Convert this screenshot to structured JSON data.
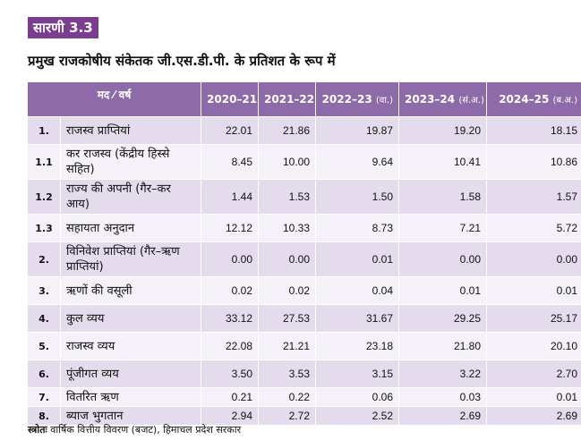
{
  "badge": "सारणी 3.3",
  "title": "प्रमुख राजकोषीय संकेतक जी.एस.डी.पी. के प्रतिशत के रूप में",
  "table": {
    "header_item": "मद ⁄ वर्ष",
    "years": [
      {
        "year": "2020–21",
        "note": ""
      },
      {
        "year": "2021–22",
        "note": ""
      },
      {
        "year": "2022–23",
        "note": "(वा.)"
      },
      {
        "year": "2023–24",
        "note": "(सं.अ.)"
      },
      {
        "year": "2024–25",
        "note": "(ब.अ.)"
      }
    ],
    "rows": [
      {
        "num": "1.",
        "label": "राजस्व प्राप्तियां",
        "values": [
          "22.01",
          "21.86",
          "19.87",
          "19.20",
          "18.15"
        ]
      },
      {
        "num": "1.1",
        "label": "कर राजस्व (केंद्रीय हिस्से सहित)",
        "values": [
          "8.45",
          "10.00",
          "9.64",
          "10.41",
          "10.86"
        ]
      },
      {
        "num": "1.2",
        "label": "राज्य की अपनी (गैर–कर आय)",
        "values": [
          "1.44",
          "1.53",
          "1.50",
          "1.58",
          "1.57"
        ]
      },
      {
        "num": "1.3",
        "label": "सहायता अनुदान",
        "values": [
          "12.12",
          "10.33",
          "8.73",
          "7.21",
          "5.72"
        ]
      },
      {
        "num": "2.",
        "label": "विनिवेश प्राप्तियां (गैर–ऋण प्राप्तियां)",
        "values": [
          "0.00",
          "0.00",
          "0.01",
          "0.00",
          "0.00"
        ]
      },
      {
        "num": "3.",
        "label": "ऋणों की वसूली",
        "values": [
          "0.02",
          "0.02",
          "0.04",
          "0.01",
          "0.01"
        ]
      },
      {
        "num": "4.",
        "label": "कुल व्यय",
        "values": [
          "33.12",
          "27.53",
          "31.67",
          "29.25",
          "25.17"
        ]
      },
      {
        "num": "5.",
        "label": "राजस्व व्यय",
        "values": [
          "22.08",
          "21.21",
          "23.18",
          "21.80",
          "20.10"
        ]
      },
      {
        "num": "6.",
        "label": "पूंजीगत व्यय",
        "values": [
          "3.50",
          "3.53",
          "3.15",
          "3.22",
          "2.70"
        ]
      },
      {
        "num": "7.",
        "label": "वितरित ऋण",
        "values": [
          "0.21",
          "0.22",
          "0.06",
          "0.03",
          "0.01"
        ]
      },
      {
        "num": "8.",
        "label": "ब्याज भुगतान",
        "values": [
          "2.94",
          "2.72",
          "2.52",
          "2.69",
          "2.69"
        ]
      }
    ]
  },
  "source": {
    "label": "स्त्रोतः",
    "text": "वार्षिक वित्तीय विवरण (बजट), हिमाचल प्रदेश सरकार"
  }
}
